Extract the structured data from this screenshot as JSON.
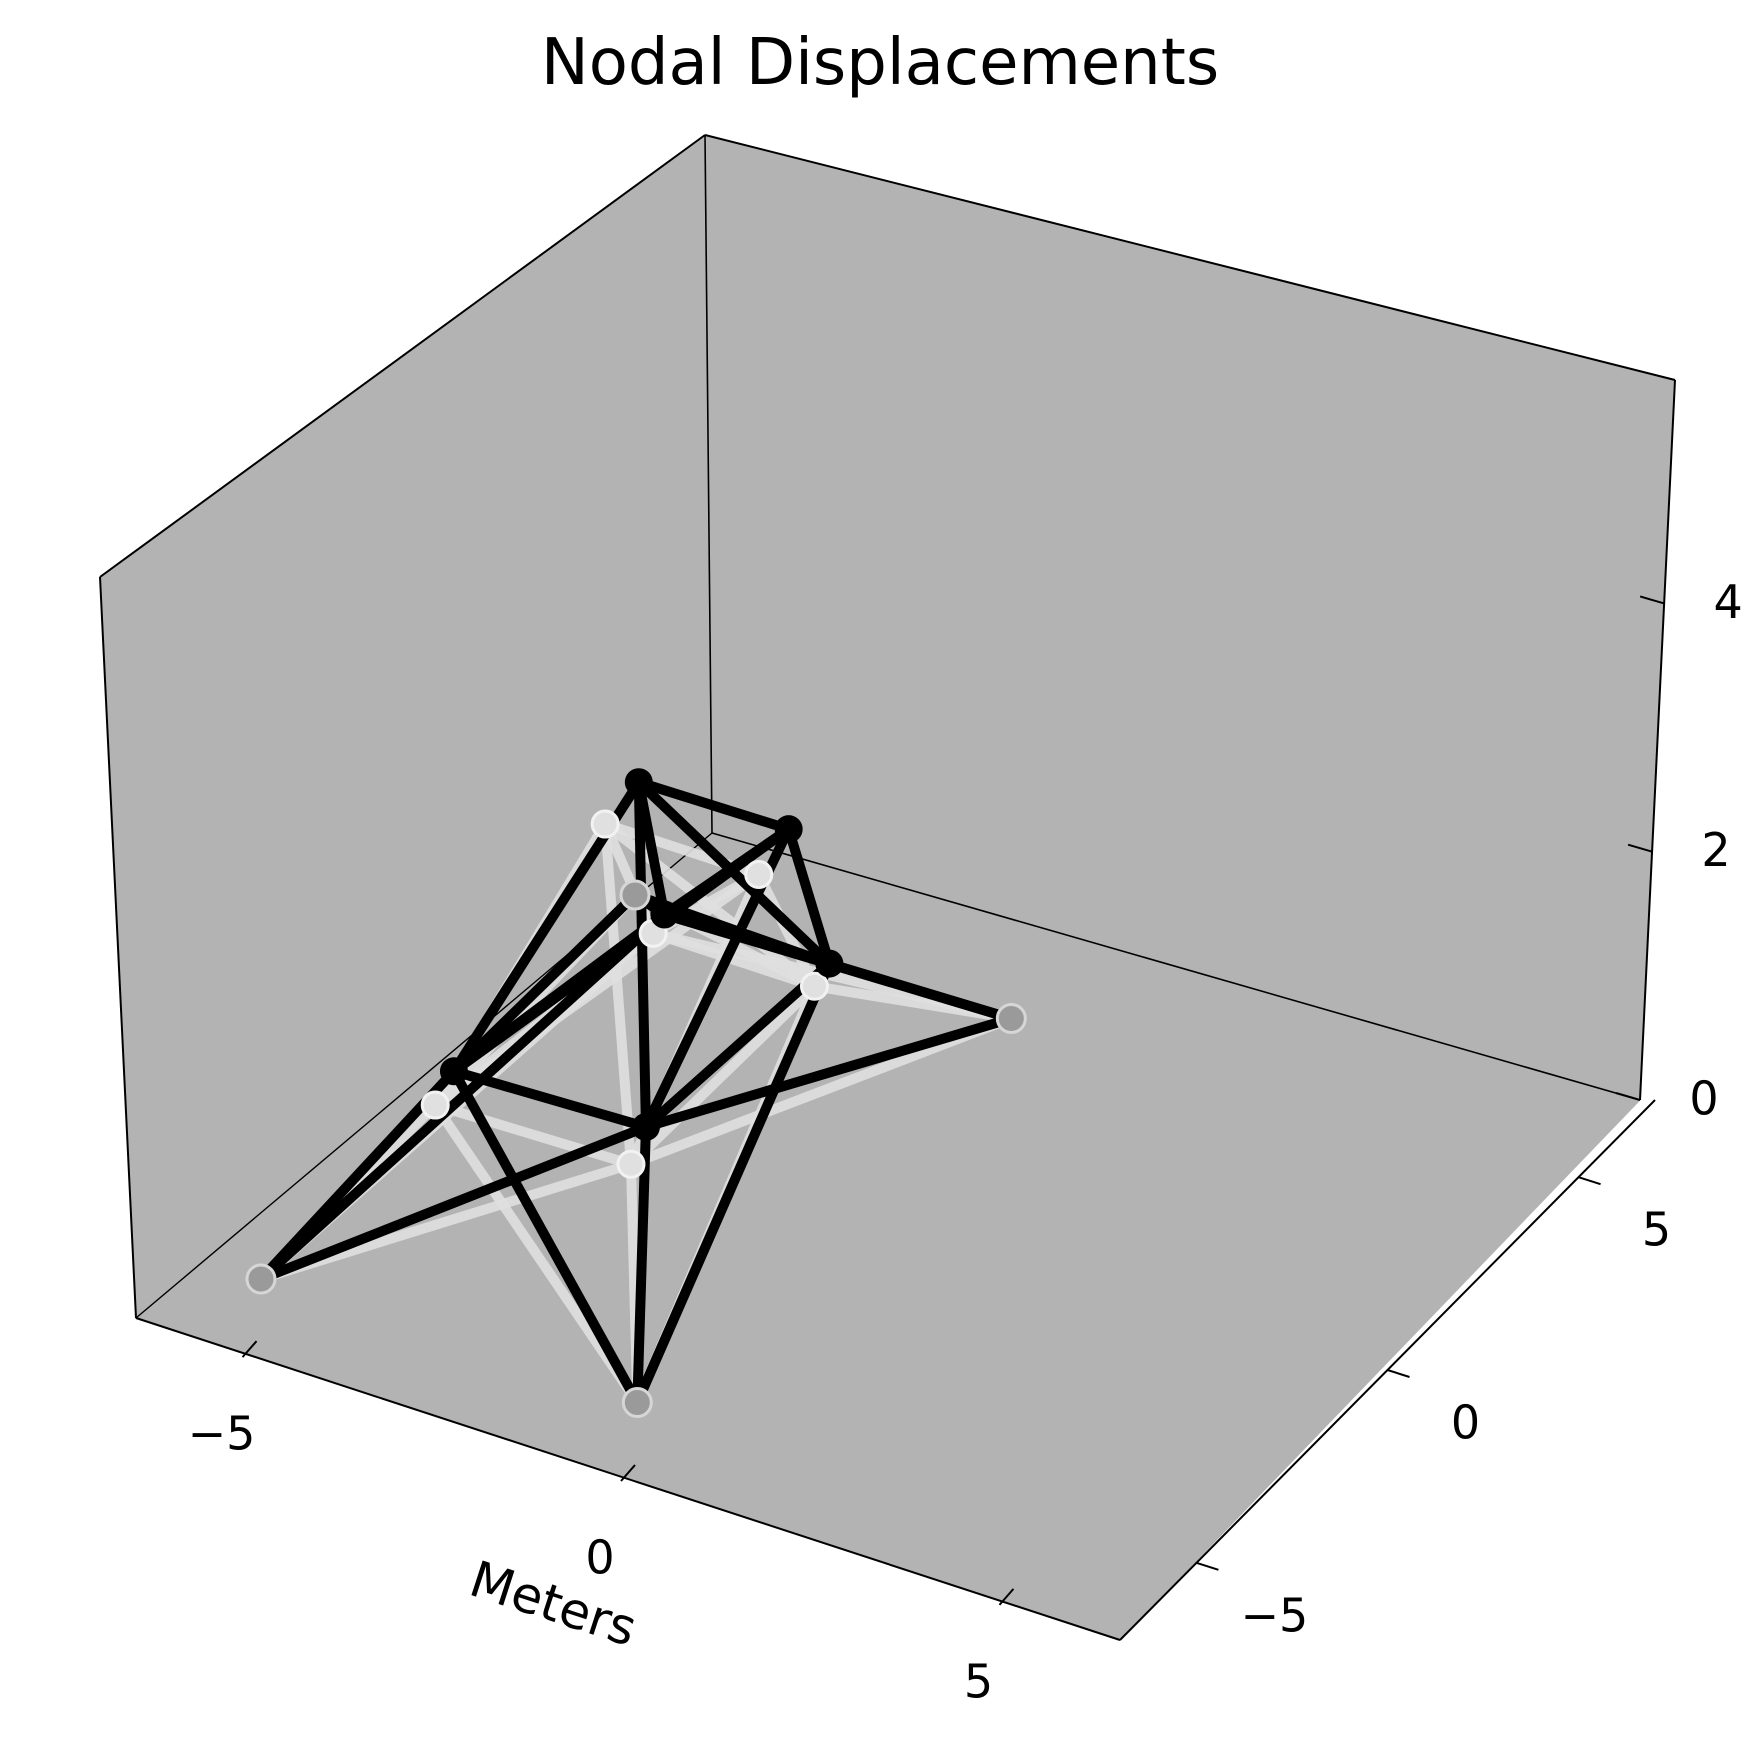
{
  "chart_data": {
    "type": "3d-wireframe",
    "title": "Nodal Displacements",
    "xlabel": "Meters",
    "ylabel": "",
    "zlabel": "",
    "xticks": [
      "−5",
      "0",
      "5"
    ],
    "yticks": [
      "−5",
      "0",
      "5"
    ],
    "zticks": [
      "0",
      "2",
      "4"
    ],
    "xlim": [
      -6.5,
      6.5
    ],
    "ylim": [
      -7,
      7
    ],
    "zlim": [
      0,
      5.8
    ],
    "grid": false,
    "colors": {
      "pane": "#b3b3b3",
      "deformed": "#000000",
      "original": "#e0e0e0",
      "support": "#9a9a9a"
    },
    "nodes": [
      {
        "id": "1",
        "x": -2.8,
        "y": -2.6,
        "z": 1.5
      },
      {
        "id": "2",
        "x": 2.2,
        "y": -2.5,
        "z": 1.5
      },
      {
        "id": "3",
        "x": 2.4,
        "y": 2.2,
        "z": 1.5
      },
      {
        "id": "4",
        "x": -1.8,
        "y": 2.2,
        "z": 1.5
      },
      {
        "id": "5",
        "x": -1.2,
        "y": 0.3,
        "z": 4.1
      },
      {
        "id": "6",
        "x": 2.8,
        "y": 0.3,
        "z": 4.1
      },
      {
        "id": "7",
        "x": -5.0,
        "y": -5.0,
        "z": 0.0
      },
      {
        "id": "8",
        "x": 4.8,
        "y": -5.0,
        "z": 0.0
      },
      {
        "id": "9",
        "x": 4.8,
        "y": 5.0,
        "z": 0.0
      },
      {
        "id": "10",
        "x": -5.0,
        "y": 5.0,
        "z": 0.0
      }
    ],
    "deformed_nodes": [
      {
        "id": "1",
        "x": -2.8,
        "y": -2.1,
        "z": 1.7
      },
      {
        "id": "2",
        "x": 2.2,
        "y": -2.1,
        "z": 1.8
      },
      {
        "id": "3",
        "x": 2.4,
        "y": 2.6,
        "z": 1.6
      },
      {
        "id": "4",
        "x": -1.8,
        "y": 2.5,
        "z": 1.6
      },
      {
        "id": "5",
        "x": -1.2,
        "y": 1.2,
        "z": 4.2
      },
      {
        "id": "6",
        "x": 2.8,
        "y": 1.1,
        "z": 4.3
      },
      {
        "id": "7",
        "x": -5.0,
        "y": -5.0,
        "z": 0.0
      },
      {
        "id": "8",
        "x": 4.8,
        "y": -5.0,
        "z": 0.0
      },
      {
        "id": "9",
        "x": 4.8,
        "y": 5.0,
        "z": 0.0
      },
      {
        "id": "10",
        "x": -5.0,
        "y": 5.0,
        "z": 0.0
      }
    ],
    "members": [
      [
        5,
        6
      ],
      [
        5,
        1
      ],
      [
        5,
        2
      ],
      [
        5,
        3
      ],
      [
        5,
        4
      ],
      [
        6,
        1
      ],
      [
        6,
        2
      ],
      [
        6,
        3
      ],
      [
        6,
        4
      ],
      [
        1,
        2
      ],
      [
        2,
        3
      ],
      [
        3,
        4
      ],
      [
        4,
        1
      ],
      [
        1,
        7
      ],
      [
        2,
        7
      ],
      [
        4,
        7
      ],
      [
        1,
        8
      ],
      [
        2,
        8
      ],
      [
        3,
        8
      ],
      [
        2,
        9
      ],
      [
        3,
        9
      ],
      [
        4,
        9
      ],
      [
        1,
        10
      ],
      [
        3,
        10
      ],
      [
        4,
        10
      ]
    ]
  }
}
